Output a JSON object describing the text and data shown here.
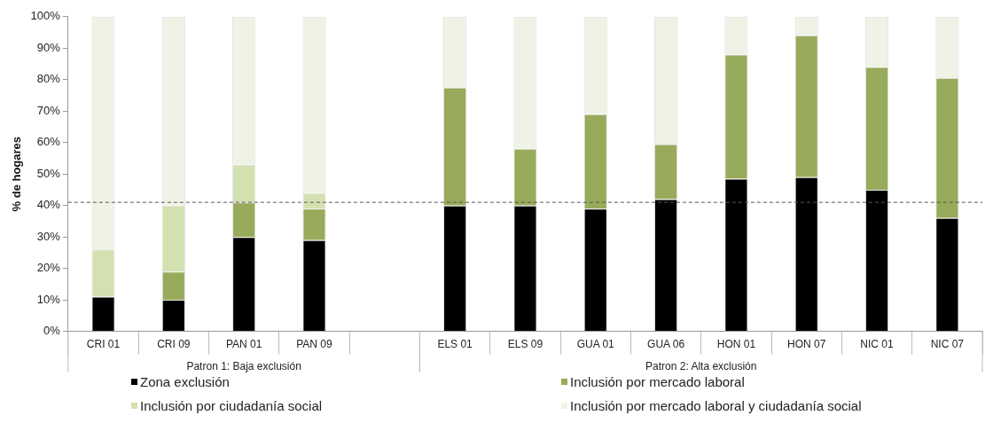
{
  "chart_data": {
    "type": "bar",
    "stacked": true,
    "ylabel": "% de hogares",
    "categories": [
      "CRI 01",
      "CRI 09",
      "PAN 01",
      "PAN 09",
      null,
      "ELS 01",
      "ELS 09",
      "GUA 01",
      "GUA 06",
      "HON 01",
      "HON 07",
      "NIC 01",
      "NIC 07"
    ],
    "series": [
      {
        "name": "Zona exclusión",
        "color": "#000000",
        "values": [
          11,
          10,
          30,
          29,
          null,
          40,
          40,
          39,
          42,
          48.5,
          49,
          45,
          36
        ]
      },
      {
        "name": "Inclusión por mercado laboral",
        "color": "#97ab5a",
        "values": [
          0,
          9,
          11,
          10,
          null,
          37.5,
          18,
          30,
          17.5,
          39.5,
          45,
          39,
          44.5
        ]
      },
      {
        "name": "Inclusión por ciudadanía social",
        "color": "#d3e1b0",
        "values": [
          15,
          21,
          12,
          5,
          null,
          0,
          0,
          0,
          0,
          0,
          0,
          0,
          0
        ]
      },
      {
        "name": "Inclusión por mercado laboral y ciudadanía social",
        "color": "#eff3e6",
        "values": [
          74,
          60,
          47,
          56,
          null,
          22.5,
          42,
          31,
          40.5,
          12,
          6,
          16,
          19.5
        ]
      }
    ],
    "ylim": [
      0,
      100
    ],
    "yticks": [
      {
        "value": 0,
        "label": "0%"
      },
      {
        "value": 10,
        "label": "10%"
      },
      {
        "value": 20,
        "label": "20%"
      },
      {
        "value": 30,
        "label": "30%"
      },
      {
        "value": 40,
        "label": "40%"
      },
      {
        "value": 50,
        "label": "50%"
      },
      {
        "value": 60,
        "label": "60%"
      },
      {
        "value": 70,
        "label": "70%"
      },
      {
        "value": 80,
        "label": "80%"
      },
      {
        "value": 90,
        "label": "90%"
      },
      {
        "value": 100,
        "label": "100%"
      }
    ],
    "ref_lines": [
      {
        "axis": "y",
        "value": 41,
        "color": "#555555",
        "line_style": "dashed"
      }
    ],
    "annotations": [
      "Patron 1: Baja exclusión",
      "Patron 2: Alta exclusión"
    ],
    "grid": false,
    "legend": "bottom"
  }
}
